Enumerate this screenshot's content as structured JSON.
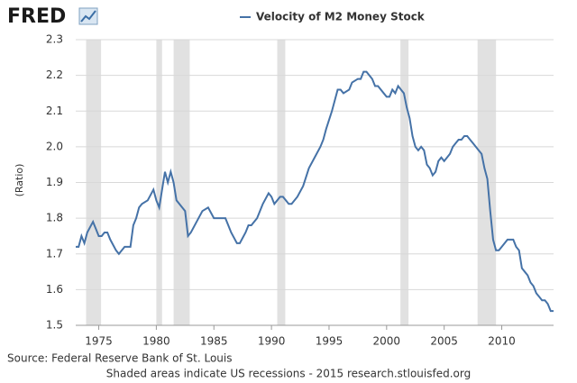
{
  "logo": "FRED",
  "chart_data": {
    "type": "line",
    "y_label": "(Ratio)",
    "source": "Source: Federal Reserve Bank of St. Louis",
    "note": "Shaded areas indicate US recessions - 2015 research.stlouisfed.org",
    "x": [
      1973.0,
      1973.25,
      1973.5,
      1973.75,
      1974.0,
      1974.5,
      1974.75,
      1975.0,
      1975.25,
      1975.5,
      1975.75,
      1976.0,
      1976.5,
      1976.75,
      1977.0,
      1977.25,
      1977.75,
      1978.0,
      1978.25,
      1978.5,
      1978.75,
      1979.25,
      1979.75,
      1980.0,
      1980.25,
      1980.5,
      1980.75,
      1981.0,
      1981.25,
      1981.5,
      1981.75,
      1982.25,
      1982.5,
      1982.75,
      1983.0,
      1983.5,
      1984.0,
      1984.5,
      1985.0,
      1985.5,
      1986.0,
      1986.5,
      1987.0,
      1987.25,
      1987.75,
      1988.0,
      1988.25,
      1988.75,
      1989.25,
      1989.75,
      1990.0,
      1990.25,
      1990.75,
      1991.0,
      1991.5,
      1991.75,
      1992.25,
      1992.75,
      1993.25,
      1993.75,
      1994.25,
      1994.5,
      1994.75,
      1995.25,
      1995.5,
      1995.75,
      1996.0,
      1996.25,
      1996.75,
      1997.0,
      1997.5,
      1997.75,
      1998.0,
      1998.25,
      1998.75,
      1999.0,
      1999.25,
      1999.75,
      2000.0,
      2000.25,
      2000.5,
      2000.75,
      2001.0,
      2001.25,
      2001.5,
      2001.75,
      2002.0,
      2002.25,
      2002.5,
      2002.75,
      2003.0,
      2003.25,
      2003.5,
      2003.75,
      2004.0,
      2004.25,
      2004.5,
      2004.75,
      2005.0,
      2005.5,
      2005.75,
      2006.0,
      2006.25,
      2006.5,
      2006.75,
      2007.0,
      2007.25,
      2007.5,
      2007.75,
      2008.0,
      2008.25,
      2008.5,
      2008.75,
      2009.0,
      2009.25,
      2009.5,
      2009.75,
      2010.0,
      2010.5,
      2010.75,
      2011.0,
      2011.25,
      2011.5,
      2011.75,
      2012.0,
      2012.25,
      2012.5,
      2012.75,
      2013.0,
      2013.25,
      2013.5,
      2013.75,
      2014.0,
      2014.25,
      2014.5
    ],
    "series": [
      {
        "name": "Velocity of M2 Money Stock",
        "color": "#4572a7",
        "values": [
          1.72,
          1.72,
          1.75,
          1.73,
          1.76,
          1.79,
          1.77,
          1.75,
          1.75,
          1.76,
          1.76,
          1.74,
          1.71,
          1.7,
          1.71,
          1.72,
          1.72,
          1.78,
          1.8,
          1.83,
          1.84,
          1.85,
          1.88,
          1.85,
          1.83,
          1.88,
          1.93,
          1.9,
          1.93,
          1.9,
          1.85,
          1.83,
          1.82,
          1.75,
          1.76,
          1.79,
          1.82,
          1.83,
          1.8,
          1.8,
          1.8,
          1.76,
          1.73,
          1.73,
          1.76,
          1.78,
          1.78,
          1.8,
          1.84,
          1.87,
          1.86,
          1.84,
          1.86,
          1.86,
          1.84,
          1.84,
          1.86,
          1.89,
          1.94,
          1.97,
          2.0,
          2.02,
          2.05,
          2.1,
          2.13,
          2.16,
          2.16,
          2.15,
          2.16,
          2.18,
          2.19,
          2.19,
          2.21,
          2.21,
          2.19,
          2.17,
          2.17,
          2.15,
          2.14,
          2.14,
          2.16,
          2.15,
          2.17,
          2.16,
          2.15,
          2.11,
          2.08,
          2.03,
          2.0,
          1.99,
          2.0,
          1.99,
          1.95,
          1.94,
          1.92,
          1.93,
          1.96,
          1.97,
          1.96,
          1.98,
          2.0,
          2.01,
          2.02,
          2.02,
          2.03,
          2.03,
          2.02,
          2.01,
          2.0,
          1.99,
          1.98,
          1.94,
          1.91,
          1.82,
          1.74,
          1.71,
          1.71,
          1.72,
          1.74,
          1.74,
          1.74,
          1.72,
          1.71,
          1.66,
          1.65,
          1.64,
          1.62,
          1.61,
          1.59,
          1.58,
          1.57,
          1.57,
          1.56,
          1.54,
          1.54
        ]
      }
    ],
    "recessions": [
      [
        1973.9,
        1975.2
      ],
      [
        1980.0,
        1980.5
      ],
      [
        1981.5,
        1982.9
      ],
      [
        1990.5,
        1991.2
      ],
      [
        2001.2,
        2001.9
      ],
      [
        2007.9,
        2009.5
      ]
    ],
    "recession_color": "#e1e1e1",
    "xlim": [
      1973,
      2014.5
    ],
    "xticks": [
      1975,
      1980,
      1985,
      1990,
      1995,
      2000,
      2005,
      2010
    ],
    "ylim": [
      1.5,
      2.3
    ],
    "yticks": [
      1.5,
      1.6,
      1.7,
      1.8,
      1.9,
      {
        "value": 2,
        "label": "2.0"
      },
      2.1,
      2.2,
      2.3
    ],
    "grid": true
  }
}
